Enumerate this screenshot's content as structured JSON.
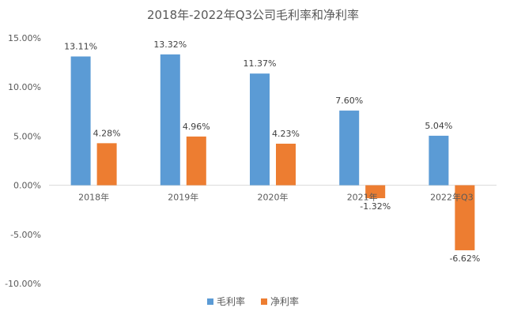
{
  "chart_data": {
    "type": "bar",
    "title": "2018年-2022年Q3公司毛利率和净利率",
    "categories": [
      "2018年",
      "2019年",
      "2020年",
      "2021年",
      "2022年Q3"
    ],
    "series": [
      {
        "name": "毛利率",
        "color": "#5B9BD5",
        "values": [
          13.11,
          13.32,
          11.37,
          7.6,
          5.04
        ],
        "labels": [
          "13.11%",
          "13.32%",
          "11.37%",
          "7.60%",
          "5.04%"
        ]
      },
      {
        "name": "净利率",
        "color": "#ED7D31",
        "values": [
          4.28,
          4.96,
          4.23,
          -1.32,
          -6.62
        ],
        "labels": [
          "4.28%",
          "4.96%",
          "4.23%",
          "-1.32%",
          "-6.62%"
        ]
      }
    ],
    "ylim": [
      -10,
      15
    ],
    "yticks": [
      15,
      10,
      5,
      0,
      -5,
      -10
    ],
    "ytick_labels": [
      "15.00%",
      "10.00%",
      "5.00%",
      "0.00%",
      "-5.00%",
      "-10.00%"
    ],
    "xlabel": "",
    "ylabel": "",
    "legend_position": "bottom",
    "grid": false
  }
}
